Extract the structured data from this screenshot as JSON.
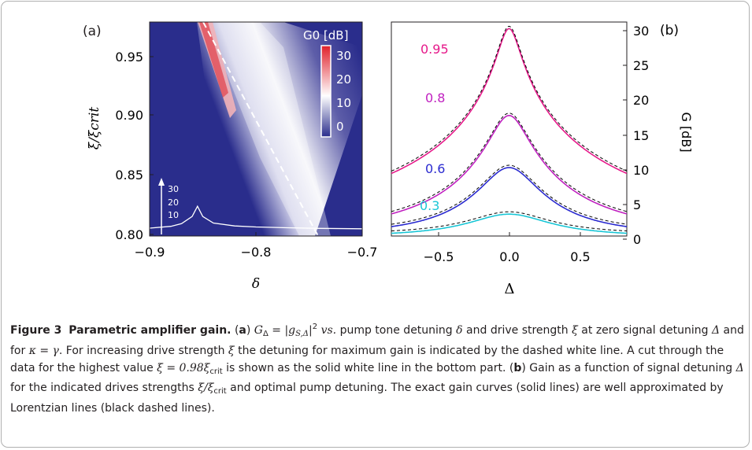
{
  "figure": {
    "panel_a_label": "(a)",
    "panel_b_label": "(b)"
  },
  "chart_data": [
    {
      "type": "heatmap",
      "panel": "(a)",
      "xlabel": "δ",
      "ylabel": "ξ/ξcrit",
      "xlim": [
        -0.9,
        -0.7
      ],
      "ylim": [
        0.795,
        0.98
      ],
      "x_ticks": [
        "−0.9",
        "−0.8",
        "−0.7"
      ],
      "y_ticks": [
        "0.80",
        "0.85",
        "0.90",
        "0.95"
      ],
      "colorbar": {
        "label": "G0 [dB]",
        "ticks": [
          "30",
          "20",
          "10",
          "0"
        ],
        "range": [
          0,
          30
        ],
        "colors": [
          "#2a2d8c",
          "#ffffff",
          "#e0202a"
        ]
      },
      "ridge_dashed_line": {
        "color": "#ffffff",
        "points": [
          [
            -0.848,
            0.98
          ],
          [
            -0.743,
            0.8
          ]
        ]
      },
      "cut_scale": {
        "ticks": [
          "30",
          "20",
          "10"
        ]
      },
      "cut_curve": {
        "description_key": "G at ξ = 0.98 ξcrit",
        "x": [
          -0.9,
          -0.88,
          -0.87,
          -0.86,
          -0.855,
          -0.85,
          -0.84,
          -0.82,
          -0.8,
          -0.77,
          -0.74,
          -0.7
        ],
        "g_db": [
          2.3,
          3.2,
          4.5,
          8.0,
          13.0,
          8.0,
          4.8,
          3.4,
          2.9,
          2.5,
          2.2,
          2.0
        ]
      }
    },
    {
      "type": "line",
      "panel": "(b)",
      "xlabel": "Δ",
      "ylabel": "G [dB]",
      "xlim": [
        -0.82,
        0.82
      ],
      "ylim": [
        0,
        31
      ],
      "x_ticks": [
        "−0.5",
        "0.0",
        "0.5"
      ],
      "y_ticks": [
        "0",
        "5",
        "10",
        "15",
        "20",
        "25",
        "30"
      ],
      "series": [
        {
          "name": "0.95",
          "color": "#e6198a",
          "peak_db": 30.0
        },
        {
          "name": "0.8",
          "color": "#c021c0",
          "peak_db": 17.5
        },
        {
          "name": "0.6",
          "color": "#2b2bd0",
          "peak_db": 10.0
        },
        {
          "name": "0.3",
          "color": "#19c6d6",
          "peak_db": 3.3
        }
      ],
      "lorentzian_fit_color": "#000000"
    }
  ],
  "caption": {
    "label": "Figure 3",
    "title": "Parametric amplifier gain.",
    "open_paren": "(",
    "a": "a",
    "b": "b",
    "close_paren": ")",
    "seg_a1": "G",
    "seg_a1_sub": "Δ",
    "seg_a2": " = |g",
    "seg_a2_sub": "S,Δ",
    "seg_a3": "|",
    "seg_a3_sup": "2",
    "seg_a4": " vs.",
    "seg_a5": " pump tone detuning ",
    "sym_delta": "δ",
    "seg_a6": " and drive strength ",
    "sym_xi": "ξ",
    "seg_a7": " at zero signal detuning ",
    "sym_Delta": "Δ",
    "seg_a8": " and for ",
    "sym_kappa": "κ = γ",
    "seg_a9": ". For increasing drive strength ",
    "seg_a10": " the detuning for maximum gain is indicated by the dashed white line. A cut through the data for the highest value ",
    "sym_xi_val": "ξ = 0.98ξ",
    "sub_crit": "crit",
    "seg_a11": " is shown as the solid white line in the bottom part.",
    "seg_b1": " Gain as a function of signal detuning ",
    "seg_b2": " for the indicated drives strengths ",
    "sym_ratio": "ξ/ξ",
    "seg_b3": " and optimal pump detuning. The exact gain curves (solid lines) are well approximated by Lorentzian lines (black dashed lines)."
  }
}
